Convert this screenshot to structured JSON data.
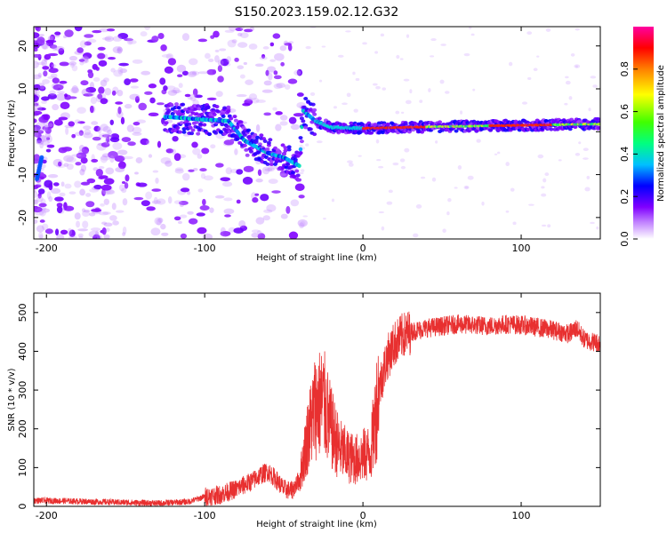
{
  "title": "S150.2023.159.02.12.G32",
  "chart_data": [
    {
      "type": "heatmap",
      "xlabel": "Height of straight line (km)",
      "ylabel": "Frequency (Hz)",
      "xlim": [
        -208,
        150
      ],
      "ylim": [
        -25,
        24.5
      ],
      "xticks": [
        -200,
        -100,
        0,
        100
      ],
      "yticks": [
        -20,
        -10,
        0,
        10,
        20
      ],
      "colorbar": {
        "label": "Normalized spectral amplitude",
        "range": [
          0,
          1
        ],
        "ticks": [
          0.0,
          0.2,
          0.4,
          0.6,
          0.8
        ],
        "colors": [
          "#ffffff",
          "#8000ff",
          "#0000ff",
          "#00ffff",
          "#00ff00",
          "#ffff00",
          "#ff0000",
          "#ff00a0"
        ]
      },
      "ridge": [
        {
          "x": -125,
          "y": 3.5
        },
        {
          "x": -100,
          "y": 2.8
        },
        {
          "x": -85,
          "y": 2.5
        },
        {
          "x": -75,
          "y": -2
        },
        {
          "x": -60,
          "y": -5
        },
        {
          "x": -50,
          "y": -6
        },
        {
          "x": -40,
          "y": -8
        },
        {
          "x": -38,
          "y": 5
        },
        {
          "x": -30,
          "y": 2.5
        },
        {
          "x": -20,
          "y": 1
        },
        {
          "x": 0,
          "y": 0.8
        },
        {
          "x": 50,
          "y": 1.2
        },
        {
          "x": 100,
          "y": 1.5
        },
        {
          "x": 150,
          "y": 1.8
        }
      ]
    },
    {
      "type": "line",
      "xlabel": "Height of straight line (km)",
      "ylabel": "SNR (10 * v/v)",
      "xlim": [
        -208,
        150
      ],
      "ylim": [
        0,
        550
      ],
      "xticks": [
        -200,
        -100,
        0,
        100
      ],
      "yticks": [
        0,
        100,
        200,
        300,
        400,
        500
      ],
      "color": "#ff0000",
      "x": [
        -208,
        -190,
        -170,
        -150,
        -130,
        -110,
        -100,
        -90,
        -80,
        -70,
        -65,
        -60,
        -55,
        -50,
        -45,
        -40,
        -35,
        -30,
        -25,
        -20,
        -15,
        -10,
        -5,
        0,
        5,
        10,
        15,
        20,
        25,
        30,
        40,
        50,
        60,
        70,
        80,
        90,
        100,
        110,
        120,
        130,
        135,
        140,
        145,
        150
      ],
      "values": [
        15,
        14,
        12,
        10,
        8,
        12,
        25,
        30,
        45,
        65,
        80,
        90,
        70,
        45,
        40,
        70,
        180,
        260,
        270,
        200,
        150,
        130,
        120,
        130,
        140,
        300,
        380,
        420,
        440,
        450,
        460,
        465,
        470,
        468,
        465,
        470,
        468,
        462,
        455,
        445,
        460,
        430,
        425,
        420
      ]
    }
  ]
}
